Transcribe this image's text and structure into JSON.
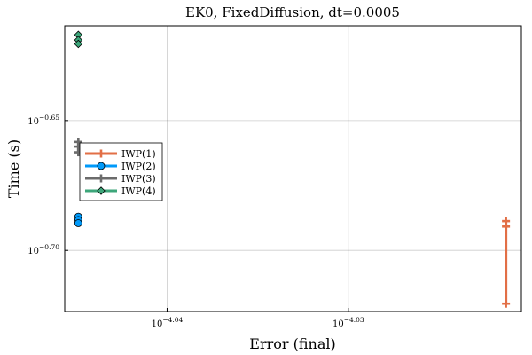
{
  "chart_data": {
    "type": "line",
    "title": "EK0, FixedDiffusion, dt=0.0005",
    "xlabel": "Error (final)",
    "ylabel": "Time (s)",
    "xscale": "log10",
    "yscale": "log10",
    "xlim_log10": [
      -4.04565,
      -4.02045
    ],
    "ylim_log10": [
      -0.7235,
      -0.6135
    ],
    "x_ticks": [
      {
        "log10": -4.04,
        "label_base": "10",
        "label_exp": "−4.04"
      },
      {
        "log10": -4.03,
        "label_base": "10",
        "label_exp": "−4.03"
      }
    ],
    "y_ticks": [
      {
        "log10": -0.65,
        "label_base": "10",
        "label_exp": "−0.65"
      },
      {
        "log10": -0.7,
        "label_base": "10",
        "label_exp": "−0.70"
      }
    ],
    "grid": true,
    "legend_position": "left-middle",
    "series": [
      {
        "name": "IWP(1)",
        "color": "#E26F46",
        "marker": "cross",
        "x_log10": [
          -4.0213,
          -4.0213,
          -4.0213
        ],
        "y_log10": [
          -0.6887,
          -0.6908,
          -0.7205
        ]
      },
      {
        "name": "IWP(2)",
        "color": "#009AFA",
        "marker": "circle",
        "x_log10": [
          -4.0449,
          -4.0449,
          -4.0449
        ],
        "y_log10": [
          -0.687,
          -0.6883,
          -0.6895
        ]
      },
      {
        "name": "IWP(3)",
        "color": "#6B6B6B",
        "marker": "cross",
        "x_log10": [
          -4.0449,
          -4.0449,
          -4.0449
        ],
        "y_log10": [
          -0.6582,
          -0.66,
          -0.6622
        ]
      },
      {
        "name": "IWP(4)",
        "color": "#3DA67A",
        "marker": "diamond",
        "x_log10": [
          -4.0449,
          -4.0449,
          -4.0449
        ],
        "y_log10": [
          -0.617,
          -0.619,
          -0.6205
        ]
      }
    ]
  }
}
